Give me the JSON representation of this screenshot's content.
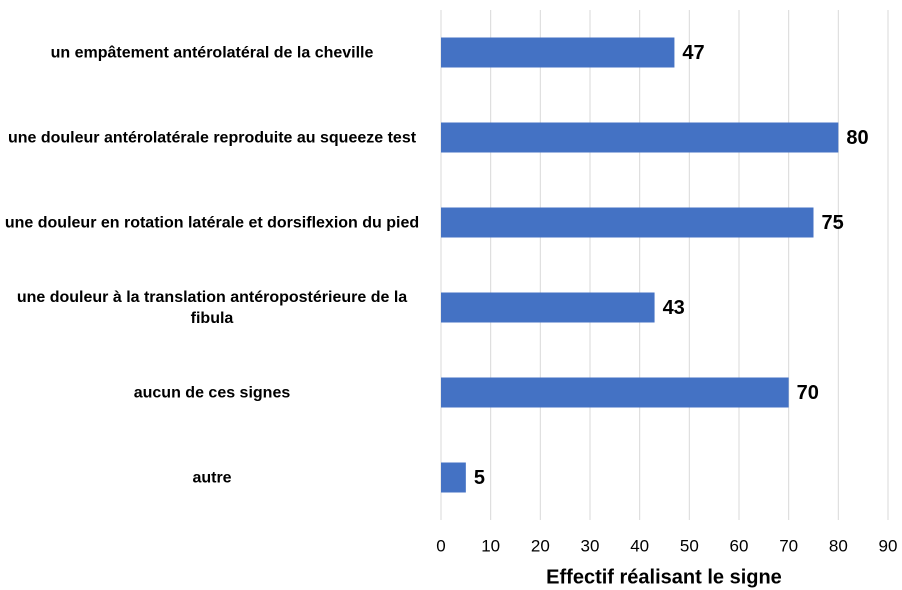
{
  "chart_data": {
    "type": "barh",
    "categories": [
      "un empâtement antérolatéral de la cheville",
      "une douleur antérolatérale reproduite au squeeze test",
      "une douleur en rotation latérale et dorsiflexion du pied",
      "une douleur à la translation antéropostérieure de la fibula",
      "aucun de ces signes",
      "autre"
    ],
    "values": [
      47,
      80,
      75,
      43,
      70,
      5
    ],
    "color": "#4472c4",
    "xlabel": "Effectif réalisant le signe",
    "xlim": [
      0,
      90
    ],
    "xticks": [
      0,
      10,
      20,
      30,
      40,
      50,
      60,
      70,
      80,
      90
    ],
    "grid": true
  }
}
